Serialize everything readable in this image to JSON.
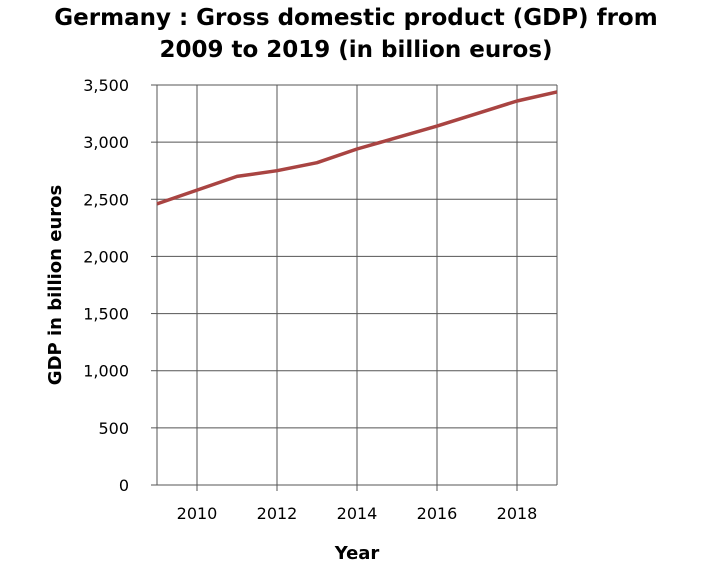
{
  "chart_data": {
    "type": "line",
    "title_lines": [
      "Germany : Gross domestic product (GDP) from",
      "2009 to 2019 (in billion euros)"
    ],
    "xlabel": "Year",
    "ylabel": "GDP in billion euros",
    "xlim": [
      2009,
      2019
    ],
    "ylim": [
      0,
      3500
    ],
    "x_ticks": [
      2010,
      2012,
      2014,
      2016,
      2018
    ],
    "x_tick_labels": [
      "2010",
      "2012",
      "2014",
      "2016",
      "2018"
    ],
    "y_ticks": [
      0,
      500,
      1000,
      1500,
      2000,
      2500,
      3000,
      3500
    ],
    "y_tick_labels": [
      "0",
      "500",
      "1,000",
      "1,500",
      "2,000",
      "2,500",
      "3,000",
      "3,500"
    ],
    "grid": true,
    "legend": "none",
    "series": [
      {
        "color": "#a94442",
        "x": [
          2009,
          2010,
          2011,
          2012,
          2013,
          2014,
          2015,
          2016,
          2017,
          2018,
          2019
        ],
        "y": [
          2460,
          2580,
          2700,
          2750,
          2820,
          2940,
          3040,
          3140,
          3250,
          3360,
          3440
        ]
      }
    ]
  }
}
